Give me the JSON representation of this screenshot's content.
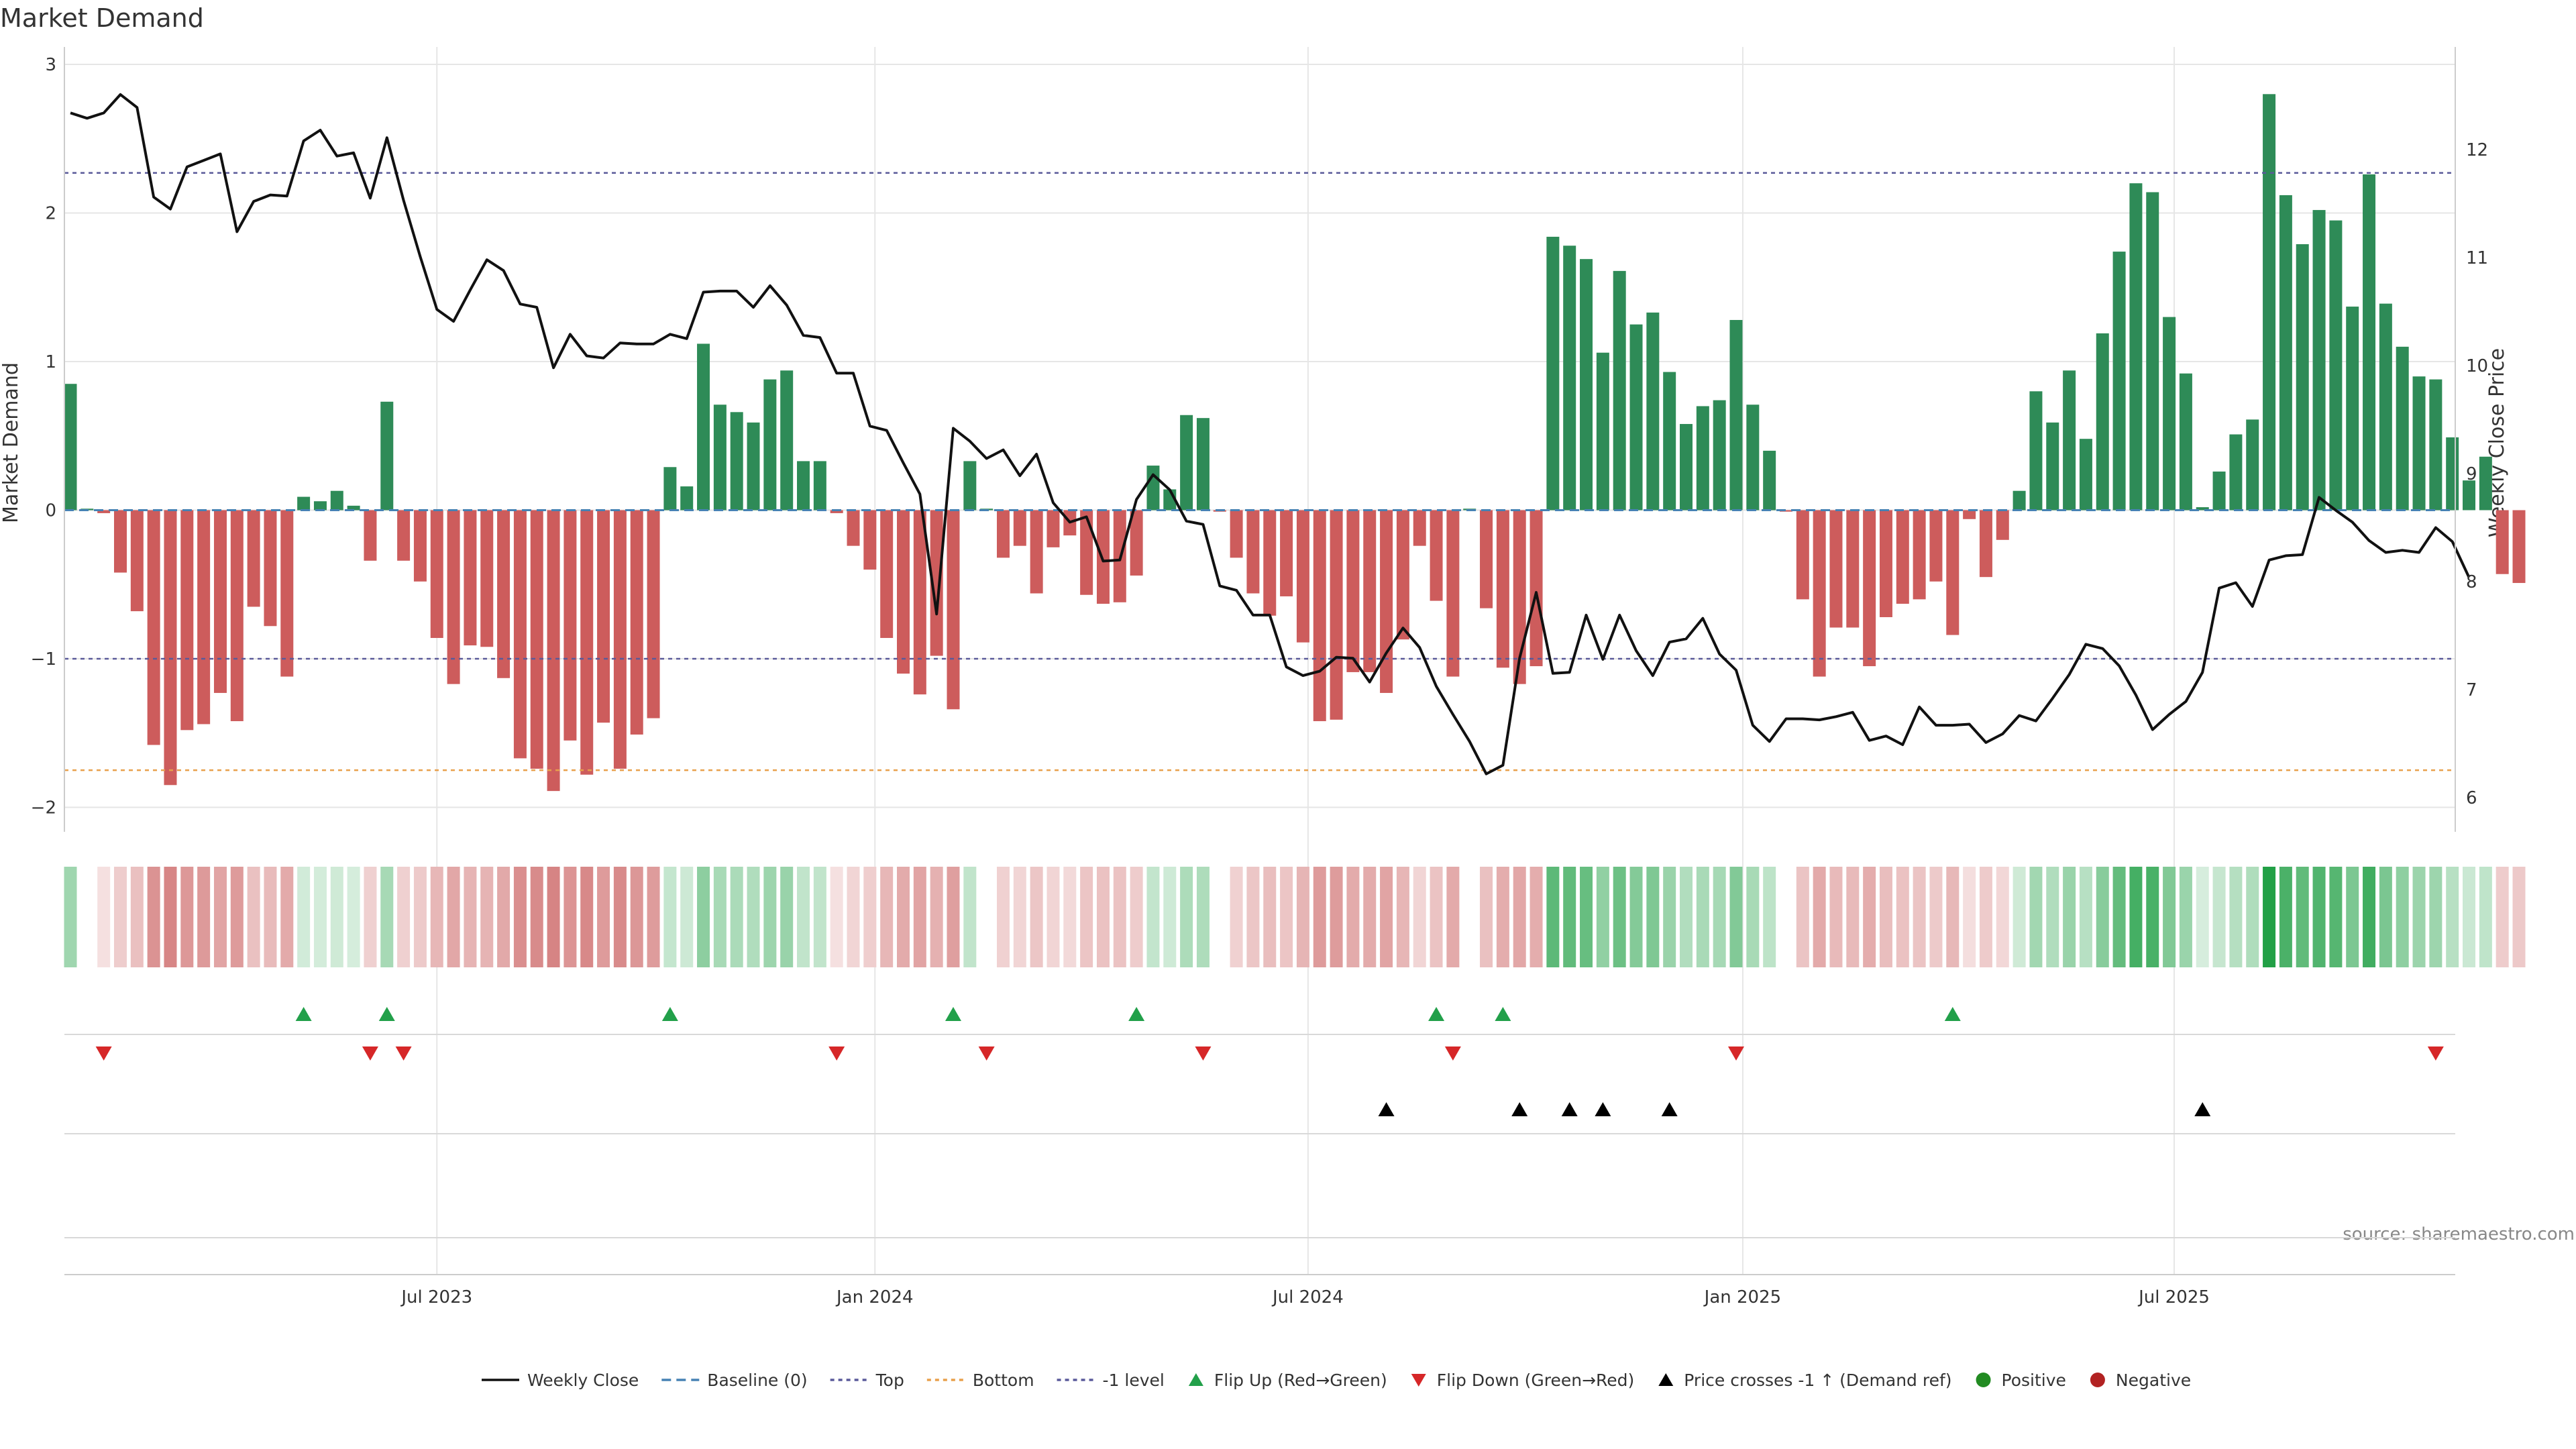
{
  "colors": {
    "positive_bar": "#2e8b57",
    "negative_bar": "#cd5c5c",
    "price_line": "#111111",
    "top_line": "#5a5a9a",
    "bottom_line": "#e8a04c",
    "level_line": "#5a5a9a",
    "baseline": "#4682b4",
    "flip_up": "#22a04a",
    "flip_down": "#d62728",
    "cross_marker": "#000000",
    "positive_dot": "#228b22",
    "negative_dot": "#b22222"
  },
  "chart_data": {
    "type": "bar",
    "title": "Market Demand",
    "ylabel": "Market Demand",
    "y2label": "Weekly Close Price",
    "ylim": [
      -2.2,
      3.05
    ],
    "y2lim": [
      5.8,
      12.8
    ],
    "yticks": [
      "3",
      "2",
      "1",
      "0",
      "−1",
      "−2"
    ],
    "y2ticks": [
      "12",
      "11",
      "10",
      "9",
      "8",
      "7",
      "6"
    ],
    "xticks": [
      "Jul 2023",
      "Jan 2024",
      "Jul 2024",
      "Jan 2025",
      "Jul 2025"
    ],
    "xtick_weeks": [
      22,
      48.3,
      74.3,
      100.4,
      126.3
    ],
    "reference_lines": {
      "top": 2.27,
      "bottom": -1.75,
      "level": -1.0
    },
    "demand": [
      0.85,
      0.01,
      -0.02,
      -0.42,
      -0.68,
      -1.58,
      -1.85,
      -1.48,
      -1.44,
      -1.23,
      -1.42,
      -0.65,
      -0.78,
      -1.12,
      0.09,
      0.06,
      0.13,
      0.03,
      -0.34,
      0.73,
      -0.34,
      -0.48,
      -0.86,
      -1.17,
      -0.91,
      -0.92,
      -1.13,
      -1.67,
      -1.74,
      -1.89,
      -1.55,
      -1.78,
      -1.43,
      -1.74,
      -1.51,
      -1.4,
      0.29,
      0.16,
      1.12,
      0.71,
      0.66,
      0.59,
      0.88,
      0.94,
      0.33,
      0.33,
      -0.02,
      -0.24,
      -0.4,
      -0.86,
      -1.1,
      -1.24,
      -0.98,
      -1.34,
      0.33,
      0.01,
      -0.32,
      -0.24,
      -0.56,
      -0.25,
      -0.17,
      -0.57,
      -0.63,
      -0.62,
      -0.44,
      0.3,
      0.14,
      0.64,
      0.62,
      -0.01,
      -0.32,
      -0.56,
      -0.71,
      -0.58,
      -0.89,
      -1.42,
      -1.41,
      -1.09,
      -1.09,
      -1.23,
      -0.87,
      -0.24,
      -0.61,
      -1.12,
      0.01,
      -0.66,
      -1.06,
      -1.17,
      -1.05,
      1.84,
      1.78,
      1.69,
      1.06,
      1.61,
      1.25,
      1.33,
      0.93,
      0.58,
      0.7,
      0.74,
      1.28,
      0.71,
      0.4,
      -0.01,
      -0.6,
      -1.12,
      -0.79,
      -0.79,
      -1.05,
      -0.72,
      -0.63,
      -0.6,
      -0.48,
      -0.84,
      -0.06,
      -0.45,
      -0.2,
      0.13,
      0.8,
      0.59,
      0.94,
      0.48,
      1.19,
      1.74,
      2.2,
      2.14,
      1.3,
      0.92,
      0.02,
      0.26,
      0.51,
      0.61,
      2.8,
      2.12,
      1.79,
      2.02,
      1.95,
      1.37,
      2.26,
      1.39,
      1.1,
      0.9,
      0.88,
      0.49,
      0.2,
      0.36,
      -0.43,
      -0.49
    ],
    "close_price": [
      12.34,
      12.29,
      12.34,
      12.51,
      12.39,
      11.56,
      11.45,
      11.84,
      11.9,
      11.96,
      11.24,
      11.52,
      11.58,
      11.57,
      12.08,
      12.18,
      11.94,
      11.97,
      11.55,
      12.11,
      11.53,
      11.01,
      10.52,
      10.41,
      10.7,
      10.98,
      10.88,
      10.57,
      10.54,
      9.98,
      10.29,
      10.09,
      10.07,
      10.21,
      10.2,
      10.2,
      10.29,
      10.25,
      10.68,
      10.69,
      10.69,
      10.54,
      10.74,
      10.56,
      10.28,
      10.26,
      9.93,
      9.93,
      9.44,
      9.4,
      9.1,
      8.81,
      7.7,
      9.42,
      9.3,
      9.14,
      9.22,
      8.98,
      9.18,
      8.73,
      8.55,
      8.6,
      8.19,
      8.2,
      8.76,
      8.99,
      8.85,
      8.56,
      8.53,
      7.96,
      7.92,
      7.69,
      7.69,
      7.21,
      7.13,
      7.17,
      7.3,
      7.29,
      7.07,
      7.34,
      7.57,
      7.39,
      7.03,
      6.77,
      6.52,
      6.22,
      6.3,
      7.29,
      7.9,
      7.15,
      7.16,
      7.69,
      7.28,
      7.69,
      7.36,
      7.13,
      7.44,
      7.47,
      7.66,
      7.33,
      7.18,
      6.67,
      6.52,
      6.73,
      6.73,
      6.72,
      6.75,
      6.79,
      6.53,
      6.57,
      6.49,
      6.84,
      6.67,
      6.67,
      6.68,
      6.51,
      6.59,
      6.76,
      6.71,
      6.92,
      7.14,
      7.42,
      7.38,
      7.22,
      6.95,
      6.63,
      6.77,
      6.89,
      7.16,
      7.94,
      7.99,
      7.77,
      8.2,
      8.24,
      8.25,
      8.78,
      8.66,
      8.55,
      8.38,
      8.27,
      8.29,
      8.27,
      8.5,
      8.37,
      8.04
    ],
    "flip_up_weeks": [
      14,
      19,
      36,
      53,
      64,
      82,
      86,
      113
    ],
    "flip_down_weeks": [
      2,
      18,
      20,
      46,
      55,
      68,
      83,
      100,
      142
    ],
    "price_cross_weeks": [
      79,
      87,
      90,
      92,
      96,
      128
    ],
    "legend": [
      "Weekly Close",
      "Baseline (0)",
      "Top",
      "Bottom",
      "-1 level",
      "Flip Up (Red→Green)",
      "Flip Down (Green→Red)",
      "Price crosses -1 ↑ (Demand ref)",
      "Positive",
      "Negative"
    ],
    "legend_placement": "bottom-center",
    "grid": true
  },
  "source_note": "source: sharemaestro.com"
}
